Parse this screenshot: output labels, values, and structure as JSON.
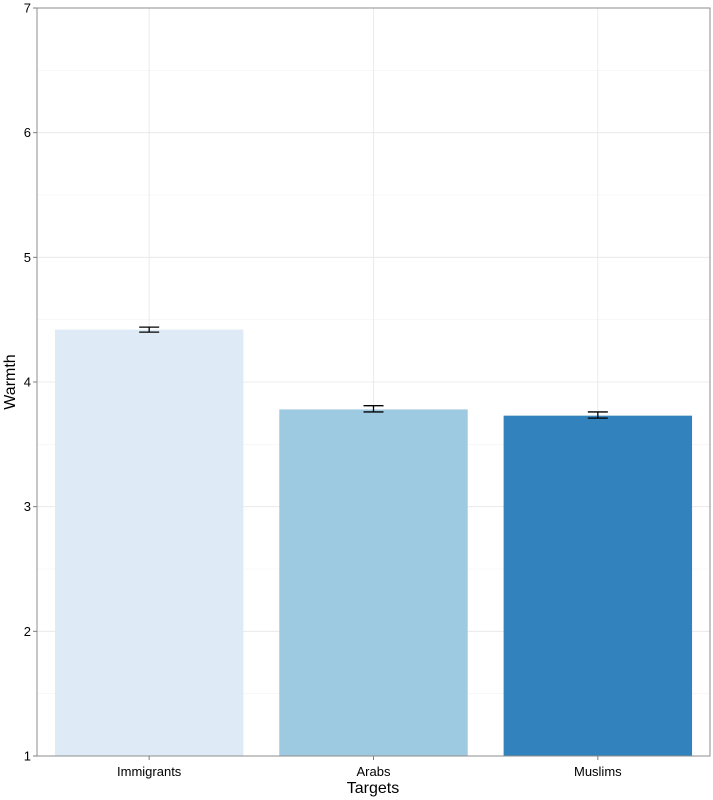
{
  "chart_data": {
    "type": "bar",
    "title": "",
    "xlabel": "Targets",
    "ylabel": "Warmth",
    "categories": [
      "Immigrants",
      "Arabs",
      "Muslims"
    ],
    "values": [
      4.42,
      3.78,
      3.73
    ],
    "error_low": [
      4.4,
      3.76,
      3.71
    ],
    "error_high": [
      4.44,
      3.81,
      3.76
    ],
    "colors": [
      "#deebf7",
      "#9ecae1",
      "#3182bd"
    ],
    "ylim": [
      1,
      7
    ],
    "yticks": [
      1,
      2,
      3,
      4,
      5,
      6,
      7
    ],
    "ytick_labels": [
      "1",
      "2",
      "3",
      "4",
      "5",
      "6",
      "7"
    ],
    "grid": true,
    "legend": "none"
  }
}
